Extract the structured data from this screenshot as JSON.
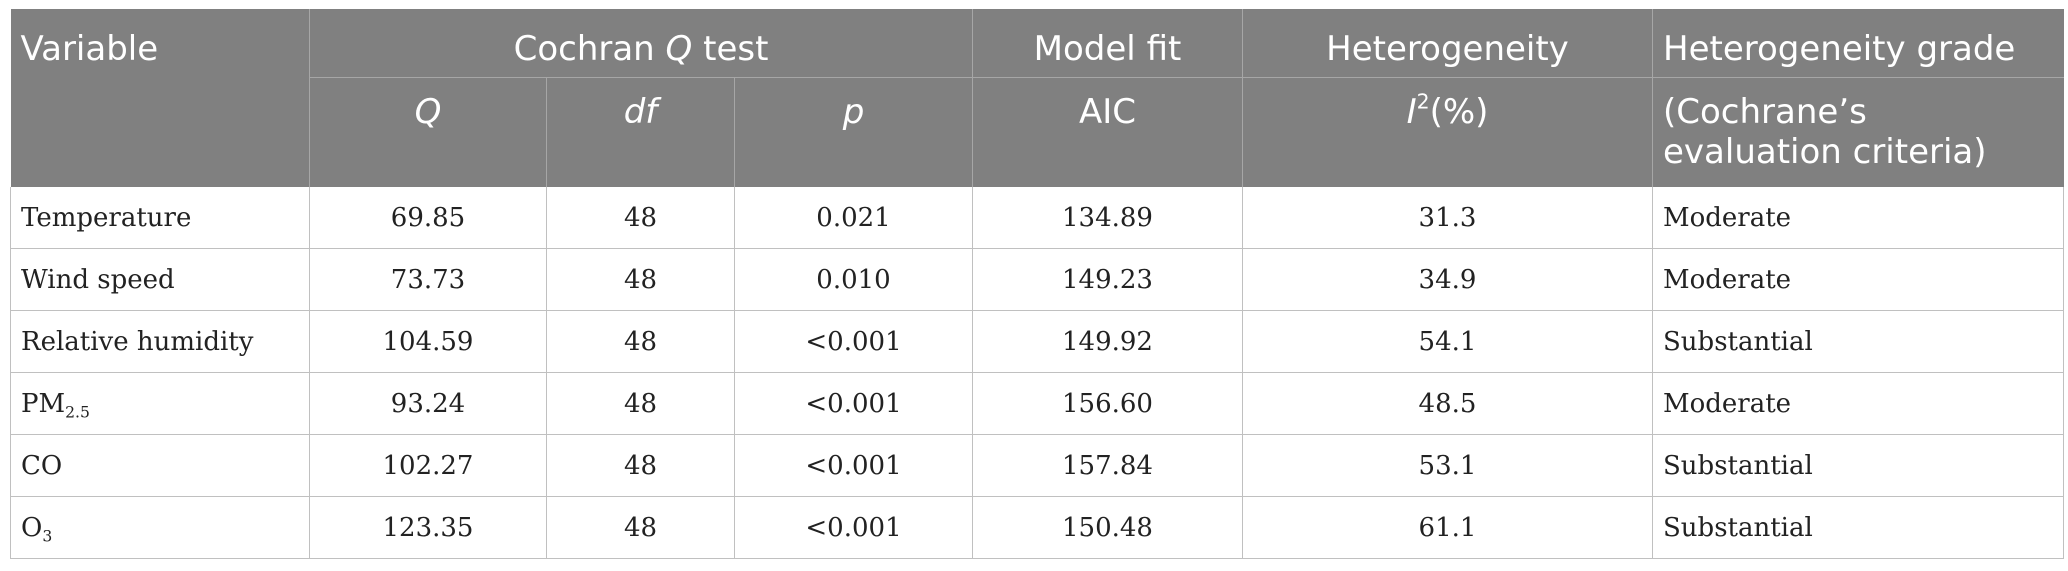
{
  "header": {
    "variable": "Variable",
    "cochran_prefix": "Cochran ",
    "cochran_q": "Q",
    "cochran_suffix": " test",
    "model_fit": "Model fit",
    "heterogeneity": "Heterogeneity",
    "heterogeneity_grade": "Heterogeneity grade",
    "sub_q": "Q",
    "sub_df": "df",
    "sub_p": "p",
    "sub_aic": "AIC",
    "sub_i": "I",
    "sub_i_sup": "2",
    "sub_i_unit": "(%)",
    "sub_grade_line1": "(Cochrane’s",
    "sub_grade_line2": "evaluation criteria)"
  },
  "rows": [
    {
      "variable": "Temperature",
      "var_sub": "",
      "q": "69.85",
      "df": "48",
      "p": "0.021",
      "aic": "134.89",
      "i2": "31.3",
      "grade": "Moderate"
    },
    {
      "variable": "Wind speed",
      "var_sub": "",
      "q": "73.73",
      "df": "48",
      "p": "0.010",
      "aic": "149.23",
      "i2": "34.9",
      "grade": "Moderate"
    },
    {
      "variable": "Relative humidity",
      "var_sub": "",
      "q": "104.59",
      "df": "48",
      "p": "<0.001",
      "aic": "149.92",
      "i2": "54.1",
      "grade": "Substantial"
    },
    {
      "variable": "PM",
      "var_sub": "2.5",
      "q": "93.24",
      "df": "48",
      "p": "<0.001",
      "aic": "156.60",
      "i2": "48.5",
      "grade": "Moderate"
    },
    {
      "variable": "CO",
      "var_sub": "",
      "q": "102.27",
      "df": "48",
      "p": "<0.001",
      "aic": "157.84",
      "i2": "53.1",
      "grade": "Substantial"
    },
    {
      "variable": "O",
      "var_sub": "3",
      "q": "123.35",
      "df": "48",
      "p": "<0.001",
      "aic": "150.48",
      "i2": "61.1",
      "grade": "Substantial"
    }
  ]
}
